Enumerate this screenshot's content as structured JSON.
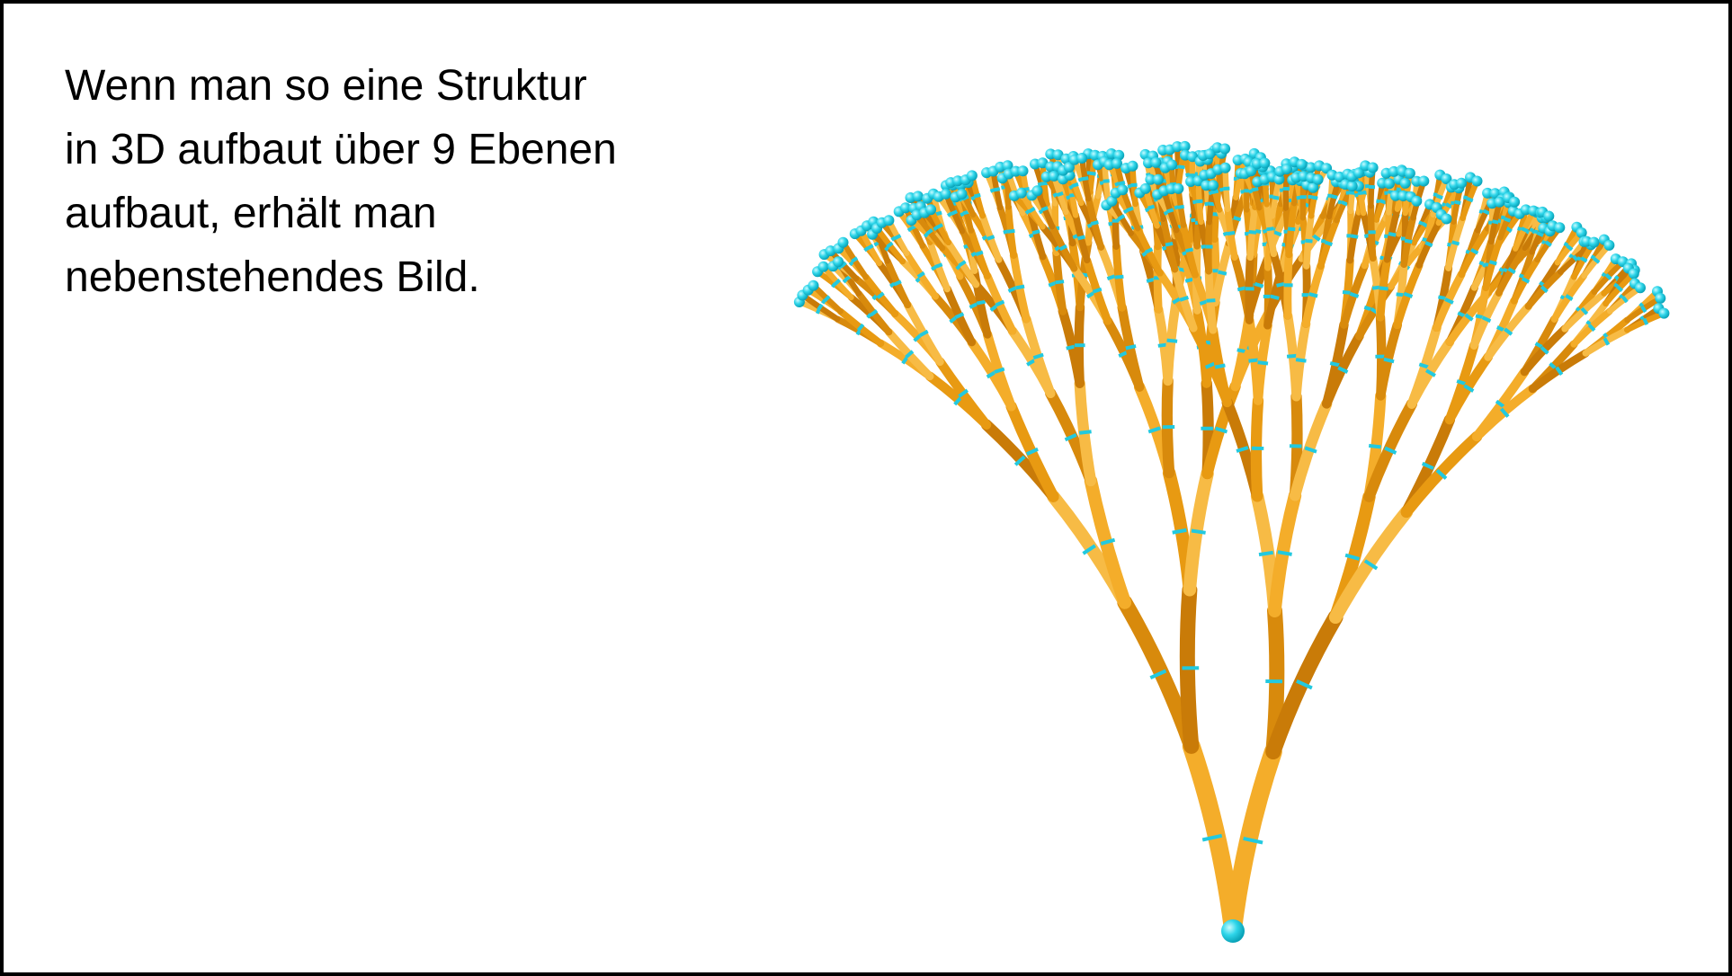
{
  "text": [
    "Wenn man so eine Struktur",
    "in 3D aufbaut über 9 Ebenen",
    "aufbaut, erhält man",
    "nebenstehendes Bild."
  ]
}
